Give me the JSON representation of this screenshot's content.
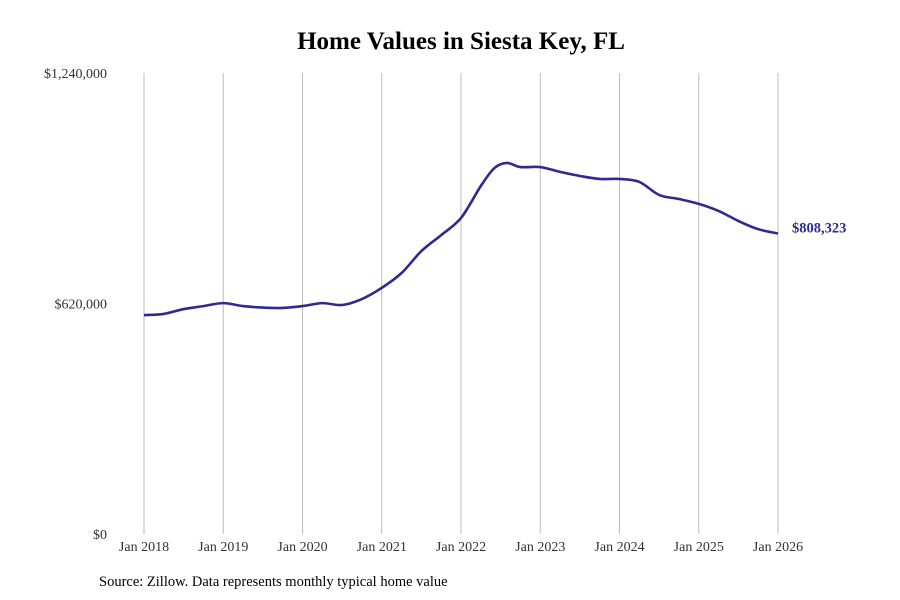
{
  "chart_data": {
    "type": "line",
    "title": "Home Values in Siesta Key, FL",
    "xlabel": "",
    "ylabel": "",
    "ylim": [
      0,
      1240000
    ],
    "xlim": [
      2018.0,
      2026.0
    ],
    "grid": "vertical",
    "y_ticks": [
      0,
      620000,
      1240000
    ],
    "y_tick_labels": [
      "$0",
      "$620,000",
      "$1,240,000"
    ],
    "x_ticks": [
      2018,
      2019,
      2020,
      2021,
      2022,
      2023,
      2024,
      2025,
      2026
    ],
    "x_tick_labels": [
      "Jan 2018",
      "Jan 2019",
      "Jan 2020",
      "Jan 2021",
      "Jan 2022",
      "Jan 2023",
      "Jan 2024",
      "Jan 2025",
      "Jan 2026"
    ],
    "series": [
      {
        "name": "Typical home value",
        "color": "#2e2a91",
        "x": [
          2018.0,
          2018.25,
          2018.5,
          2018.75,
          2019.0,
          2019.25,
          2019.5,
          2019.75,
          2020.0,
          2020.25,
          2020.5,
          2020.75,
          2021.0,
          2021.25,
          2021.5,
          2021.75,
          2022.0,
          2022.25,
          2022.42,
          2022.58,
          2022.75,
          2023.0,
          2023.25,
          2023.5,
          2023.75,
          2024.0,
          2024.25,
          2024.5,
          2024.75,
          2025.0,
          2025.25,
          2025.5,
          2025.75,
          2026.0
        ],
        "values": [
          589000,
          592000,
          605000,
          613000,
          621000,
          613000,
          609000,
          608000,
          613000,
          621000,
          616000,
          632000,
          662000,
          702000,
          761000,
          804000,
          850000,
          936000,
          984000,
          998000,
          987000,
          987000,
          974000,
          963000,
          955000,
          955000,
          947000,
          912000,
          901000,
          888000,
          869000,
          842000,
          820000,
          808323
        ]
      }
    ],
    "annotations": [
      "$808,323"
    ]
  },
  "source": "Source: Zillow. Data represents monthly typical home value"
}
